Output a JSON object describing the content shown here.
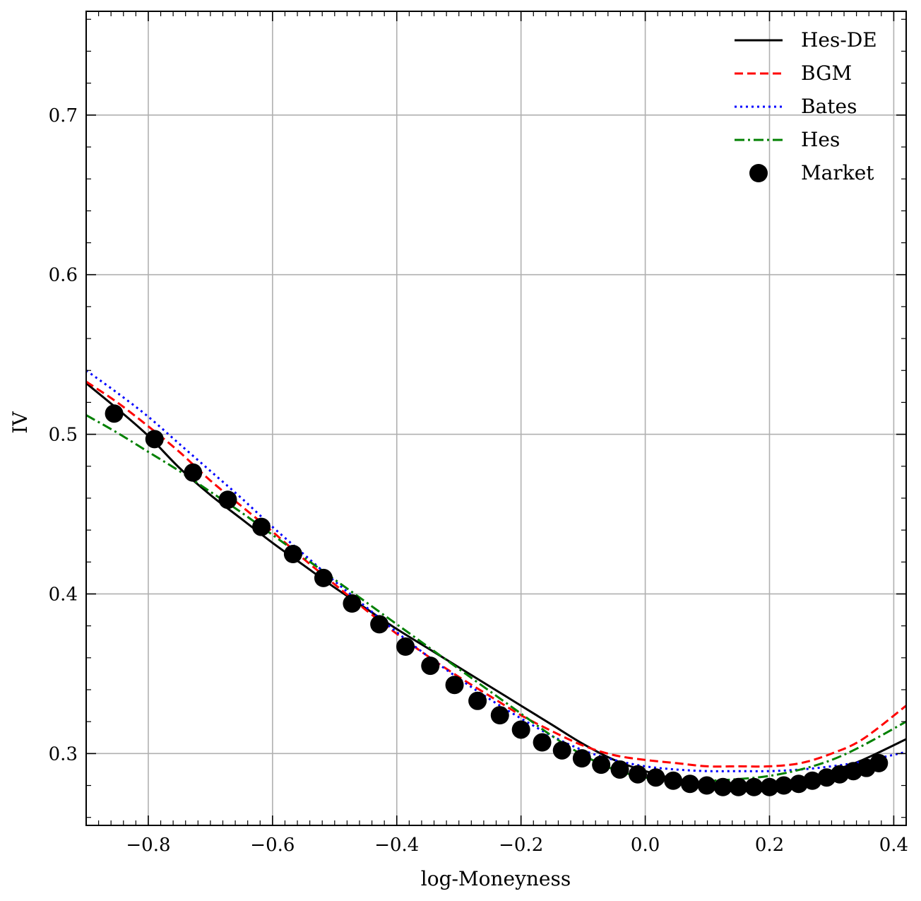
{
  "chart_data": {
    "type": "line",
    "title": "",
    "xlabel": "log-Moneyness",
    "ylabel": "IV",
    "xlim": [
      -0.9,
      0.42
    ],
    "ylim": [
      0.255,
      0.765
    ],
    "grid": true,
    "legend_position": "top-right",
    "x_ticks": [
      -0.8,
      -0.6,
      -0.4,
      -0.2,
      0.0,
      0.2,
      0.4
    ],
    "x_tick_labels": [
      "−0.8",
      "−0.6",
      "−0.4",
      "−0.2",
      "0.0",
      "0.2",
      "0.4"
    ],
    "y_ticks": [
      0.3,
      0.4,
      0.5,
      0.6,
      0.7
    ],
    "y_tick_labels": [
      "0.3",
      "0.4",
      "0.5",
      "0.6",
      "0.7"
    ],
    "series": [
      {
        "name": "Hes-DE",
        "style": "solid",
        "color": "#000000",
        "x": [
          -0.9,
          -0.85,
          -0.8,
          -0.75,
          -0.7,
          -0.65,
          -0.6,
          -0.55,
          -0.5,
          -0.45,
          -0.4,
          -0.35,
          -0.3,
          -0.25,
          -0.2,
          -0.15,
          -0.1,
          -0.05,
          0.0,
          0.05,
          0.1,
          0.15,
          0.2,
          0.25,
          0.3,
          0.35,
          0.42
        ],
        "y": [
          0.532,
          0.516,
          0.499,
          0.479,
          0.462,
          0.447,
          0.432,
          0.418,
          0.404,
          0.391,
          0.378,
          0.366,
          0.354,
          0.342,
          0.33,
          0.318,
          0.306,
          0.296,
          0.289,
          0.284,
          0.281,
          0.28,
          0.281,
          0.284,
          0.289,
          0.296,
          0.309
        ]
      },
      {
        "name": "BGM",
        "style": "dashed",
        "color": "#ff0000",
        "x": [
          -0.9,
          -0.85,
          -0.8,
          -0.75,
          -0.7,
          -0.65,
          -0.6,
          -0.55,
          -0.5,
          -0.45,
          -0.4,
          -0.35,
          -0.3,
          -0.25,
          -0.2,
          -0.15,
          -0.1,
          -0.05,
          0.0,
          0.05,
          0.1,
          0.15,
          0.2,
          0.25,
          0.3,
          0.35,
          0.42
        ],
        "y": [
          0.533,
          0.52,
          0.505,
          0.489,
          0.471,
          0.455,
          0.439,
          0.422,
          0.406,
          0.39,
          0.375,
          0.361,
          0.348,
          0.336,
          0.324,
          0.314,
          0.305,
          0.299,
          0.296,
          0.294,
          0.292,
          0.292,
          0.292,
          0.294,
          0.3,
          0.309,
          0.33
        ]
      },
      {
        "name": "Bates",
        "style": "dotted",
        "color": "#0000ff",
        "x": [
          -0.9,
          -0.85,
          -0.8,
          -0.75,
          -0.7,
          -0.65,
          -0.6,
          -0.55,
          -0.5,
          -0.45,
          -0.4,
          -0.35,
          -0.3,
          -0.25,
          -0.2,
          -0.15,
          -0.1,
          -0.05,
          0.0,
          0.05,
          0.1,
          0.15,
          0.2,
          0.25,
          0.3,
          0.35,
          0.42
        ],
        "y": [
          0.54,
          0.526,
          0.511,
          0.494,
          0.477,
          0.46,
          0.442,
          0.425,
          0.408,
          0.392,
          0.376,
          0.361,
          0.347,
          0.334,
          0.322,
          0.311,
          0.302,
          0.296,
          0.292,
          0.29,
          0.289,
          0.289,
          0.289,
          0.29,
          0.292,
          0.295,
          0.301
        ]
      },
      {
        "name": "Hes",
        "style": "dashdot",
        "color": "#008000",
        "x": [
          -0.9,
          -0.85,
          -0.8,
          -0.75,
          -0.7,
          -0.65,
          -0.6,
          -0.55,
          -0.5,
          -0.45,
          -0.4,
          -0.35,
          -0.3,
          -0.25,
          -0.2,
          -0.15,
          -0.1,
          -0.05,
          0.0,
          0.05,
          0.1,
          0.15,
          0.2,
          0.25,
          0.3,
          0.35,
          0.42
        ],
        "y": [
          0.512,
          0.501,
          0.489,
          0.477,
          0.464,
          0.451,
          0.437,
          0.423,
          0.409,
          0.395,
          0.381,
          0.367,
          0.353,
          0.339,
          0.325,
          0.311,
          0.299,
          0.29,
          0.285,
          0.283,
          0.283,
          0.284,
          0.286,
          0.29,
          0.296,
          0.305,
          0.32
        ]
      }
    ],
    "market": {
      "name": "Market",
      "color": "#000000",
      "x": [
        -0.855,
        -0.79,
        -0.728,
        -0.672,
        -0.618,
        -0.567,
        -0.518,
        -0.472,
        -0.428,
        -0.386,
        -0.346,
        -0.307,
        -0.27,
        -0.234,
        -0.2,
        -0.166,
        -0.134,
        -0.102,
        -0.071,
        -0.041,
        -0.012,
        0.017,
        0.045,
        0.072,
        0.099,
        0.125,
        0.15,
        0.175,
        0.2,
        0.223,
        0.247,
        0.269,
        0.292,
        0.313,
        0.335,
        0.356,
        0.376
      ],
      "y": [
        0.513,
        0.497,
        0.476,
        0.459,
        0.442,
        0.425,
        0.41,
        0.394,
        0.381,
        0.367,
        0.355,
        0.343,
        0.333,
        0.324,
        0.315,
        0.307,
        0.302,
        0.297,
        0.293,
        0.29,
        0.287,
        0.285,
        0.283,
        0.281,
        0.28,
        0.279,
        0.279,
        0.279,
        0.279,
        0.28,
        0.281,
        0.283,
        0.285,
        0.287,
        0.289,
        0.291,
        0.294
      ]
    }
  }
}
